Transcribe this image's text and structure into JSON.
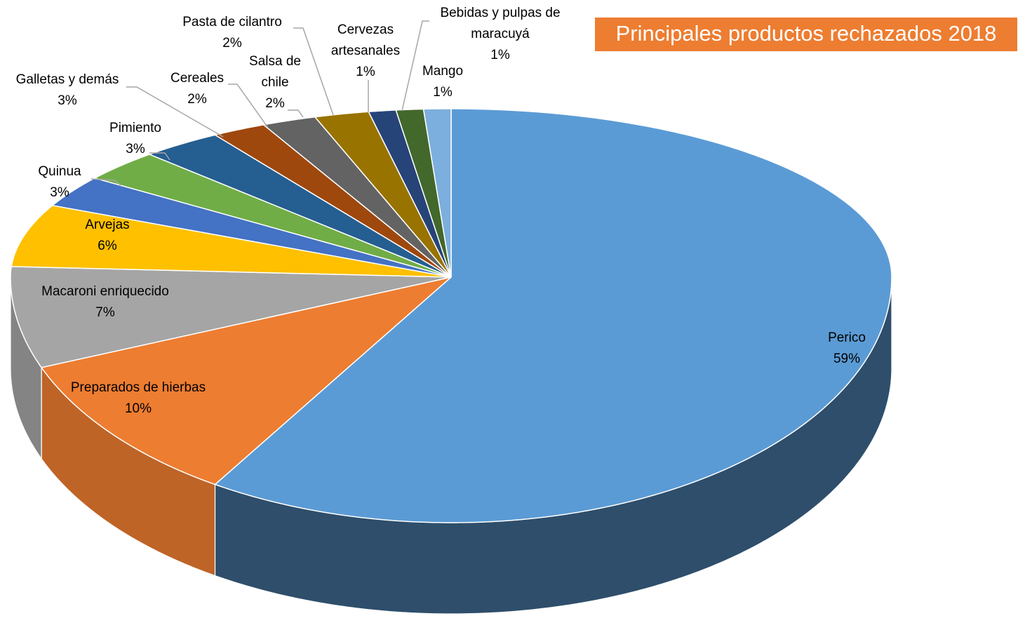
{
  "chart_data": {
    "type": "pie",
    "title": "Principales productos rechazados 2018",
    "categories": [
      "Perico",
      "Preparados de hierbas",
      "Macaroni enriquecido",
      "Arvejas",
      "Quinua",
      "Pimiento",
      "Galletas y demás",
      "Cereales",
      "Salsa de chile",
      "Pasta de cilantro",
      "Cervezas artesanales",
      "Bebidas y pulpas de maracuyá",
      "Mango"
    ],
    "values": [
      59,
      10,
      7,
      6,
      3,
      3,
      3,
      2,
      2,
      2,
      1,
      1,
      1
    ],
    "value_labels": [
      "59%",
      "10%",
      "7%",
      "6%",
      "3%",
      "3%",
      "3%",
      "2%",
      "2%",
      "2%",
      "1%",
      "1%",
      "1%"
    ],
    "colors": [
      "#5b9bd5",
      "#ed7d31",
      "#a5a5a5",
      "#ffc000",
      "#4472c4",
      "#70ad47",
      "#255e91",
      "#9e480e",
      "#636363",
      "#997300",
      "#264478",
      "#43682b",
      "#7cafdd"
    ]
  }
}
